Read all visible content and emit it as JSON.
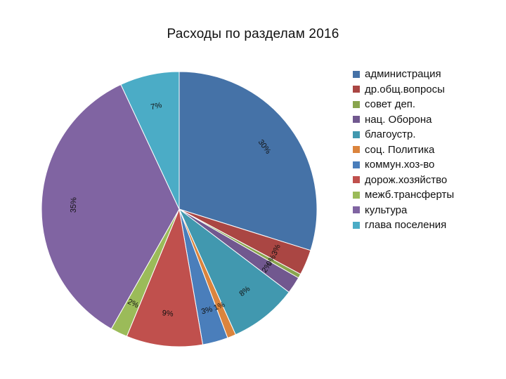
{
  "chart_data": {
    "type": "pie",
    "title": "Расходы по разделам 2016",
    "start_angle_deg": 0,
    "direction": "clockwise",
    "legend_position": "right",
    "categories": [
      "администрация",
      "др.общ.вопросы",
      "совет деп.",
      "нац. Оборона",
      "благоустр.",
      "соц. Политика",
      "коммун.хоз-во",
      "дорож.хозяйство",
      "межб.трансферты",
      "культура",
      "глава поселения"
    ],
    "values": [
      30,
      3,
      0.5,
      2,
      8,
      1,
      3,
      9,
      2,
      35,
      7
    ],
    "data_labels": [
      "30%",
      "3%",
      "0%",
      "2%",
      "8%",
      "1%",
      "3%",
      "9%",
      "2%",
      "35%",
      "7%"
    ],
    "colors": [
      "#4572A7",
      "#AA4643",
      "#89A54E",
      "#71588F",
      "#4198AF",
      "#DB843D",
      "#4A7EBB",
      "#C0504D",
      "#9BBB59",
      "#8064A2",
      "#4BACC6"
    ]
  }
}
